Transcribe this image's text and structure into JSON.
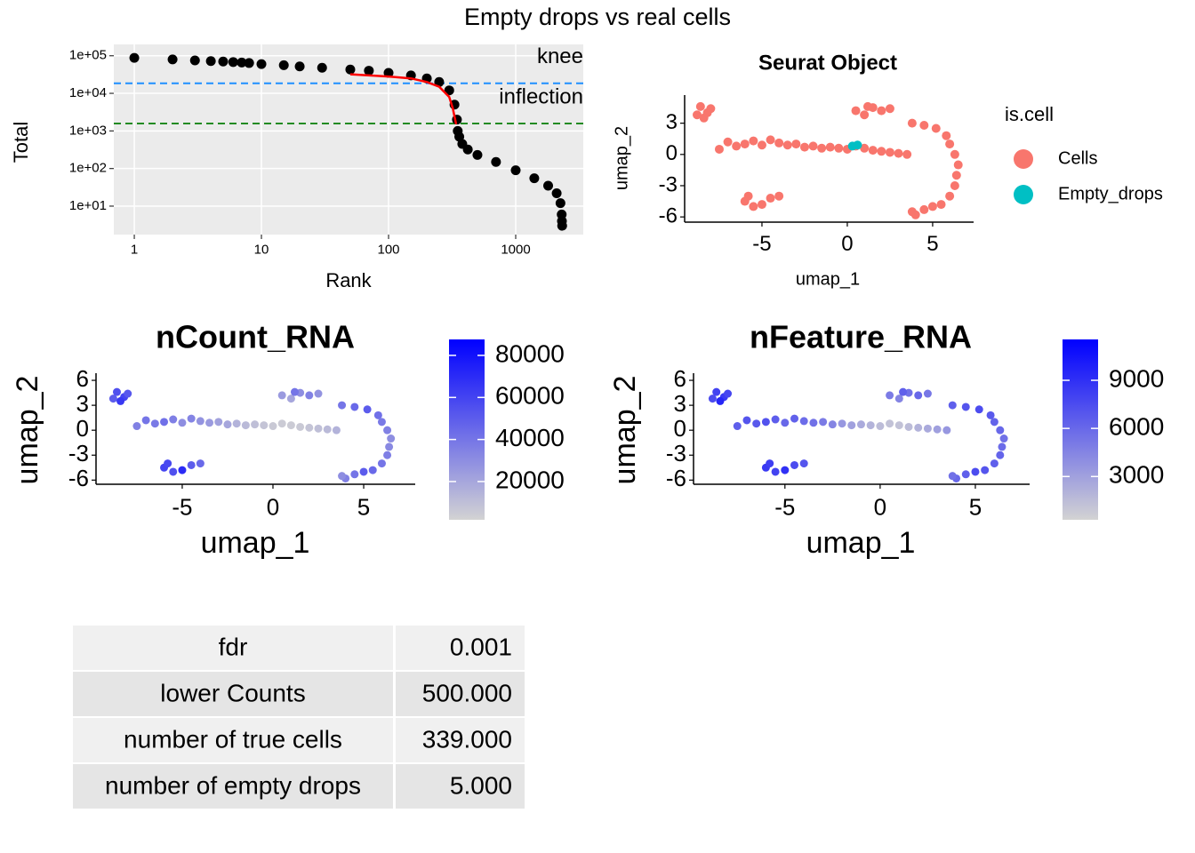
{
  "title": "Empty drops vs real cells",
  "chart_data": [
    {
      "type": "scatter",
      "xlabel": "Rank",
      "ylabel": "Total",
      "theme": "gray",
      "grid": true,
      "log_x": true,
      "log_y": true,
      "xlim": [
        0.69,
        3400
      ],
      "ylim": [
        1.75,
        200000
      ],
      "xticks": [
        1,
        10,
        100,
        1000
      ],
      "yticks": [
        {
          "value": 10,
          "label": "1e+01"
        },
        {
          "value": 100,
          "label": "1e+02"
        },
        {
          "value": 1000,
          "label": "1e+03"
        },
        {
          "value": 10000,
          "label": "1e+04"
        },
        {
          "value": 100000,
          "label": "1e+05"
        }
      ],
      "series": [
        {
          "type": "scatter",
          "color": "#000000",
          "x": [
            1,
            2,
            3,
            4,
            5,
            6,
            7,
            8,
            10,
            15,
            20,
            30,
            50,
            70,
            100,
            150,
            200,
            250,
            300,
            330,
            345,
            350,
            360,
            380,
            420,
            500,
            700,
            1000,
            1400,
            1800,
            2100,
            2250,
            2300,
            2310,
            2320
          ],
          "values": [
            88000,
            80000,
            75000,
            72000,
            70000,
            68000,
            66000,
            64000,
            60000,
            56000,
            52000,
            48000,
            43000,
            40000,
            35000,
            30000,
            25000,
            20000,
            12000,
            5000,
            2000,
            1000,
            700,
            450,
            320,
            230,
            150,
            90,
            55,
            35,
            22,
            12,
            6,
            4,
            3
          ]
        },
        {
          "type": "line",
          "color": "#ff0000",
          "x": [
            50,
            100,
            150,
            200,
            250,
            300,
            320,
            340
          ],
          "values": [
            32000,
            28000,
            25000,
            20000,
            15000,
            8000,
            4000,
            1500
          ]
        }
      ],
      "annotations": [
        {
          "text": "knee",
          "value": 18450,
          "color": "#1e90ff"
        },
        {
          "text": "inflection",
          "value": 1580,
          "color": "#228b22"
        }
      ]
    },
    {
      "type": "scatter",
      "title": "Seurat Object",
      "xlabel": "umap_1",
      "ylabel": "umap_2",
      "theme": "classic",
      "xlim": [
        -9.53,
        7.4
      ],
      "ylim": [
        -6.5,
        5.7
      ],
      "xticks": [
        -5,
        0,
        5
      ],
      "yticks": [
        -6,
        -3,
        0,
        3
      ],
      "legend": "right",
      "legend_title": "is.cell",
      "series": [
        {
          "name": "Cells",
          "color": "#f8766d",
          "x": [
            -8.6,
            -8.2,
            -8.8,
            -8.0,
            -8.4,
            -7.5,
            -7,
            -6.5,
            -6,
            -5.5,
            -5,
            -4.5,
            -4,
            -3.5,
            -3,
            -2.5,
            -2,
            -1.5,
            -1,
            -0.5,
            0,
            0.5,
            1,
            1.5,
            2,
            2.5,
            3,
            3.5,
            -6,
            -5.5,
            -5,
            -4.5,
            -4,
            -5.8,
            0.5,
            1,
            1.5,
            2,
            2.5,
            1.2,
            3.8,
            4.5,
            5.2,
            5.8,
            6,
            6.3,
            6.5,
            6.4,
            6.3,
            6,
            5.5,
            5,
            4.5,
            4,
            3.8
          ],
          "values": [
            4.6,
            4.0,
            3.8,
            4.4,
            3.5,
            0.5,
            1.2,
            0.8,
            1.0,
            1.3,
            0.9,
            1.4,
            1.1,
            0.9,
            1.0,
            0.7,
            0.8,
            0.6,
            0.7,
            0.6,
            0.5,
            0.8,
            0.6,
            0.4,
            0.3,
            0.2,
            0.1,
            0.0,
            -4.5,
            -5,
            -4.8,
            -4.2,
            -4.0,
            -4.0,
            4.2,
            3.8,
            4.5,
            4.2,
            4.4,
            4.6,
            3.0,
            2.8,
            2.5,
            1.8,
            1.0,
            0,
            -1,
            -2,
            -3,
            -4,
            -4.8,
            -5,
            -5.3,
            -5.8,
            -5.5
          ]
        },
        {
          "name": "Empty_drops",
          "color": "#00bfc4",
          "x": [
            0.3,
            0.6
          ],
          "values": [
            0.8,
            0.9
          ]
        }
      ]
    },
    {
      "type": "scatter",
      "title": "nCount_RNA",
      "xlabel": "umap_1",
      "ylabel": "umap_2",
      "theme": "classic",
      "xlim": [
        -9.75,
        7.84
      ],
      "ylim": [
        -6.5,
        6.86
      ],
      "xticks": [
        -5,
        0,
        5
      ],
      "yticks": [
        -6,
        -3,
        0,
        3,
        6
      ],
      "colormap": [
        "#d3d3d3",
        "#0000ff"
      ],
      "clim": [
        1800,
        87600
      ],
      "cticks": [
        20000,
        40000,
        60000,
        80000
      ],
      "x": [
        -8.6,
        -8.2,
        -8.8,
        -8.0,
        -8.4,
        -7.5,
        -7,
        -6.5,
        -6,
        -5.5,
        -5,
        -4.5,
        -4,
        -3.5,
        -3,
        -2.5,
        -2,
        -1.5,
        -1,
        -0.5,
        0,
        0.5,
        1,
        1.5,
        2,
        2.5,
        3,
        3.5,
        -6,
        -5.5,
        -5,
        -4.5,
        -4,
        -5.8,
        0.5,
        1,
        1.5,
        2,
        2.5,
        1.2,
        3.8,
        4.5,
        5.2,
        5.8,
        6,
        6.3,
        6.5,
        6.4,
        6.3,
        6,
        5.5,
        5,
        4.5,
        4,
        3.8
      ],
      "values": [
        4.6,
        4.0,
        3.8,
        4.4,
        3.5,
        0.5,
        1.2,
        0.8,
        1.0,
        1.3,
        0.9,
        1.4,
        1.1,
        0.9,
        1.0,
        0.7,
        0.8,
        0.6,
        0.7,
        0.6,
        0.5,
        0.8,
        0.6,
        0.4,
        0.3,
        0.2,
        0.1,
        0.0,
        -4.5,
        -5,
        -4.8,
        -4.2,
        -4.0,
        -4.0,
        4.2,
        3.8,
        4.5,
        4.2,
        4.4,
        4.6,
        3.0,
        2.8,
        2.5,
        1.8,
        1.0,
        0,
        -1,
        -2,
        -3,
        -4,
        -4.8,
        -5,
        -5.3,
        -5.8,
        -5.5
      ],
      "color_values": [
        55000,
        60000,
        50000,
        52000,
        65000,
        35000,
        40000,
        38000,
        42000,
        36000,
        30000,
        34000,
        28000,
        25000,
        22000,
        20000,
        15000,
        12000,
        10000,
        8000,
        6000,
        5000,
        5000,
        6000,
        8000,
        10000,
        12000,
        15000,
        60000,
        55000,
        70000,
        50000,
        45000,
        58000,
        25000,
        20000,
        30000,
        35000,
        28000,
        40000,
        40000,
        45000,
        50000,
        42000,
        38000,
        35000,
        30000,
        32000,
        36000,
        40000,
        45000,
        50000,
        40000,
        35000,
        30000
      ]
    },
    {
      "type": "scatter",
      "title": "nFeature_RNA",
      "xlabel": "umap_1",
      "ylabel": "umap_2",
      "theme": "classic",
      "xlim": [
        -9.8,
        7.85
      ],
      "ylim": [
        -6.5,
        6.86
      ],
      "xticks": [
        -5,
        0,
        5
      ],
      "yticks": [
        -6,
        -3,
        0,
        3,
        6
      ],
      "colormap": [
        "#d3d3d3",
        "#0000ff"
      ],
      "clim": [
        300,
        11550
      ],
      "cticks": [
        3000,
        6000,
        9000
      ],
      "x": [
        -8.6,
        -8.2,
        -8.8,
        -8.0,
        -8.4,
        -7.5,
        -7,
        -6.5,
        -6,
        -5.5,
        -5,
        -4.5,
        -4,
        -3.5,
        -3,
        -2.5,
        -2,
        -1.5,
        -1,
        -0.5,
        0,
        0.5,
        1,
        1.5,
        2,
        2.5,
        3,
        3.5,
        -6,
        -5.5,
        -5,
        -4.5,
        -4,
        -5.8,
        0.5,
        1,
        1.5,
        2,
        2.5,
        1.2,
        3.8,
        4.5,
        5.2,
        5.8,
        6,
        6.3,
        6.5,
        6.4,
        6.3,
        6,
        5.5,
        5,
        4.5,
        4,
        3.8
      ],
      "values": [
        4.6,
        4.0,
        3.8,
        4.4,
        3.5,
        0.5,
        1.2,
        0.8,
        1.0,
        1.3,
        0.9,
        1.4,
        1.1,
        0.9,
        1.0,
        0.7,
        0.8,
        0.6,
        0.7,
        0.6,
        0.5,
        0.8,
        0.6,
        0.4,
        0.3,
        0.2,
        0.1,
        0.0,
        -4.5,
        -5,
        -4.8,
        -4.2,
        -4.0,
        -4.0,
        4.2,
        3.8,
        4.5,
        4.2,
        4.4,
        4.6,
        3.0,
        2.8,
        2.5,
        1.8,
        1.0,
        0,
        -1,
        -2,
        -3,
        -4,
        -4.8,
        -5,
        -5.3,
        -5.8,
        -5.5
      ],
      "color_values": [
        8000,
        8500,
        7500,
        7800,
        9500,
        6500,
        7000,
        6800,
        7200,
        6600,
        6000,
        6400,
        5800,
        5500,
        5000,
        4500,
        3500,
        3000,
        2500,
        2000,
        1500,
        1200,
        1200,
        1500,
        2000,
        2500,
        3000,
        3500,
        8500,
        8000,
        9000,
        7500,
        7000,
        8200,
        5000,
        4500,
        5500,
        6000,
        5200,
        6500,
        6500,
        7000,
        7500,
        6800,
        6200,
        6000,
        5500,
        5800,
        6200,
        6500,
        7000,
        7500,
        6500,
        6000,
        5500
      ]
    }
  ],
  "table": {
    "rows": [
      [
        "fdr",
        "0.001"
      ],
      [
        "lower Counts",
        "500.000"
      ],
      [
        "number of true cells",
        "339.000"
      ],
      [
        "number of empty drops",
        "5.000"
      ]
    ]
  }
}
